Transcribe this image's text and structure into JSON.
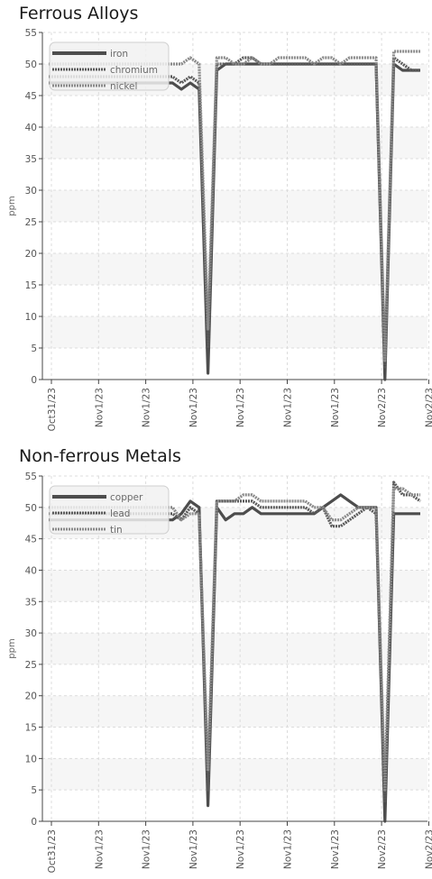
{
  "chart_data": [
    {
      "type": "line",
      "title": "Ferrous Alloys",
      "ylabel": "ppm",
      "xlabel": "",
      "ylim": [
        0,
        55
      ],
      "yticks": [
        0,
        5,
        10,
        15,
        20,
        25,
        30,
        35,
        40,
        45,
        50,
        55
      ],
      "xticklabels": [
        "Oct31/23",
        "Nov1/23",
        "Nov1/23",
        "Nov1/23",
        "Nov1/23",
        "Nov1/23",
        "Nov1/23",
        "Nov2/23",
        "Nov2/23"
      ],
      "grid": true,
      "legend": "top-left",
      "series": [
        {
          "name": "iron",
          "color": "#4d4d4d",
          "style": "solid",
          "values": [
            47,
            47,
            47,
            47,
            47,
            47,
            47,
            47,
            47,
            47,
            47,
            47,
            47,
            47,
            47,
            46,
            47,
            46,
            1,
            49,
            50,
            50,
            50,
            50,
            50,
            50,
            50,
            50,
            50,
            50,
            50,
            50,
            50,
            50,
            50,
            50,
            50,
            50,
            0,
            50,
            49,
            49,
            49
          ]
        },
        {
          "name": "chromium",
          "color": "#5a5a5a",
          "style": "dotted",
          "values": [
            48,
            48,
            48,
            48,
            48,
            48,
            48,
            48,
            48,
            48,
            48,
            48,
            48,
            48,
            48,
            47,
            48,
            47,
            5,
            50,
            50,
            50,
            51,
            51,
            50,
            50,
            50,
            50,
            50,
            50,
            50,
            50,
            50,
            50,
            50,
            50,
            50,
            50,
            2,
            51,
            50,
            49,
            49
          ]
        },
        {
          "name": "nickel",
          "color": "#8a8a8a",
          "style": "dotted",
          "values": [
            50,
            50,
            50,
            50,
            50,
            50,
            50,
            50,
            50,
            50,
            50,
            50,
            50,
            50,
            50,
            50,
            51,
            50,
            8,
            51,
            51,
            50,
            50,
            51,
            50,
            50,
            51,
            51,
            51,
            51,
            50,
            51,
            51,
            50,
            51,
            51,
            51,
            51,
            3,
            52,
            52,
            52,
            52
          ]
        }
      ]
    },
    {
      "type": "line",
      "title": "Non-ferrous Metals",
      "ylabel": "ppm",
      "xlabel": "",
      "ylim": [
        0,
        55
      ],
      "yticks": [
        0,
        5,
        10,
        15,
        20,
        25,
        30,
        35,
        40,
        45,
        50,
        55
      ],
      "xticklabels": [
        "Oct31/23",
        "Nov1/23",
        "Nov1/23",
        "Nov1/23",
        "Nov1/23",
        "Nov1/23",
        "Nov1/23",
        "Nov2/23",
        "Nov2/23"
      ],
      "grid": true,
      "legend": "top-left",
      "series": [
        {
          "name": "copper",
          "color": "#4d4d4d",
          "style": "solid",
          "values": [
            48,
            48,
            48,
            48,
            48,
            48,
            48,
            48,
            48,
            48,
            48,
            48,
            48,
            48,
            48,
            49,
            51,
            50,
            2.5,
            50,
            48,
            49,
            49,
            50,
            49,
            49,
            49,
            49,
            49,
            49,
            49,
            50,
            51,
            52,
            51,
            50,
            50,
            50,
            0,
            49,
            49,
            49,
            49
          ]
        },
        {
          "name": "lead",
          "color": "#5a5a5a",
          "style": "dotted",
          "values": [
            49,
            49,
            49,
            49,
            49,
            49,
            49,
            49,
            49,
            49,
            49,
            49,
            49,
            49,
            49,
            48,
            50,
            49,
            5,
            51,
            51,
            51,
            51,
            51,
            50,
            50,
            50,
            50,
            50,
            50,
            49,
            50,
            47,
            47,
            48,
            49,
            50,
            49,
            3,
            54,
            52,
            52,
            51
          ]
        },
        {
          "name": "tin",
          "color": "#8a8a8a",
          "style": "dotted",
          "values": [
            50,
            50,
            50,
            50,
            50,
            50,
            50,
            50,
            50,
            50,
            50,
            50,
            50,
            50,
            50,
            48,
            49,
            49,
            8,
            51,
            51,
            51,
            52,
            52,
            51,
            51,
            51,
            51,
            51,
            51,
            50,
            50,
            48,
            48,
            49,
            50,
            50,
            50,
            5,
            53,
            53,
            52,
            52
          ]
        }
      ]
    }
  ]
}
